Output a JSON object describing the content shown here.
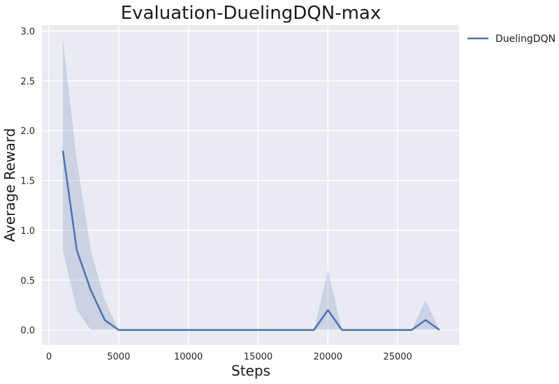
{
  "chart_data": {
    "type": "line",
    "title": "Evaluation-DuelingDQN-max",
    "xlabel": "Steps",
    "ylabel": "Average Reward",
    "xlim": [
      -500,
      29400
    ],
    "ylim": [
      -0.15,
      3.06
    ],
    "xticks": [
      0,
      5000,
      10000,
      15000,
      20000,
      25000
    ],
    "xtick_labels": [
      "0",
      "5000",
      "10000",
      "15000",
      "20000",
      "25000"
    ],
    "yticks": [
      0.0,
      0.5,
      1.0,
      1.5,
      2.0,
      2.5,
      3.0
    ],
    "ytick_labels": [
      "0.0",
      "0.5",
      "1.0",
      "1.5",
      "2.0",
      "2.5",
      "3.0"
    ],
    "grid": true,
    "legend_position": "outside-top-right",
    "series": [
      {
        "name": "DuelingDQN",
        "color": "#4c72b0",
        "x": [
          1000,
          2000,
          3000,
          4000,
          5000,
          6000,
          7000,
          8000,
          9000,
          10000,
          11000,
          12000,
          13000,
          14000,
          15000,
          16000,
          17000,
          18000,
          19000,
          20000,
          21000,
          22000,
          23000,
          24000,
          25000,
          26000,
          27000,
          28000
        ],
        "y": [
          1.8,
          0.8,
          0.4,
          0.1,
          0,
          0,
          0,
          0,
          0,
          0,
          0,
          0,
          0,
          0,
          0,
          0,
          0,
          0,
          0,
          0.2,
          0,
          0,
          0,
          0,
          0,
          0,
          0.1,
          0
        ],
        "y_upper": [
          2.92,
          1.7,
          0.8,
          0.3,
          0,
          0,
          0,
          0,
          0,
          0,
          0,
          0,
          0,
          0,
          0,
          0,
          0,
          0,
          0,
          0.6,
          0,
          0,
          0,
          0,
          0,
          0,
          0.3,
          0
        ],
        "y_lower": [
          0.8,
          0.2,
          0,
          0,
          0,
          0,
          0,
          0,
          0,
          0,
          0,
          0,
          0,
          0,
          0,
          0,
          0,
          0,
          0,
          0,
          0,
          0,
          0,
          0,
          0,
          0,
          0,
          0
        ]
      }
    ]
  }
}
